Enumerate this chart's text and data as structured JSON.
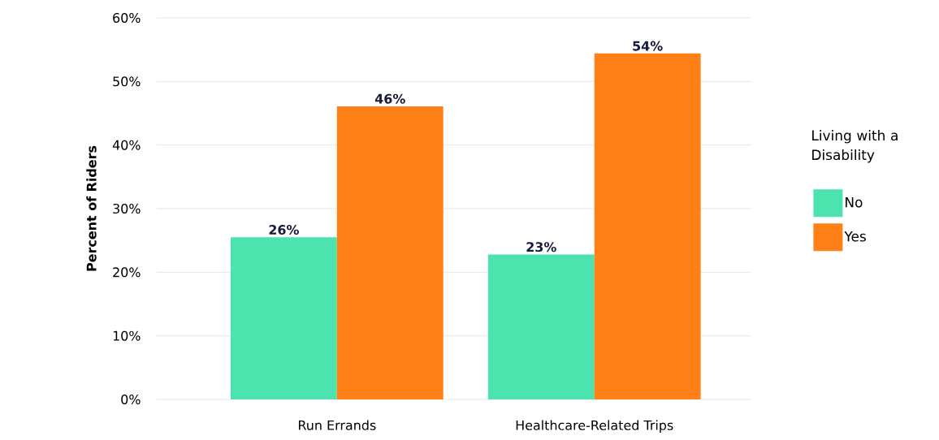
{
  "chart_data": {
    "type": "bar",
    "ylabel": "Percent of Riders",
    "legend_title": "Living with a Disability",
    "categories": [
      "Run Errands",
      "Healthcare-Related Trips"
    ],
    "series": [
      {
        "name": "No",
        "color": "#4de3ae",
        "values": [
          25.5,
          22.8
        ],
        "value_labels": [
          "26%",
          "23%"
        ]
      },
      {
        "name": "Yes",
        "color": "#ff8016",
        "values": [
          46.1,
          54.4
        ],
        "value_labels": [
          "46%",
          "54%"
        ]
      }
    ],
    "ylim": [
      0,
      60
    ],
    "yticks": [
      {
        "value": 0,
        "label": "0%"
      },
      {
        "value": 10,
        "label": "10%"
      },
      {
        "value": 20,
        "label": "20%"
      },
      {
        "value": 30,
        "label": "30%"
      },
      {
        "value": 40,
        "label": "40%"
      },
      {
        "value": 50,
        "label": "50%"
      },
      {
        "value": 60,
        "label": "60%"
      }
    ],
    "grid": "y",
    "legend": "right"
  }
}
